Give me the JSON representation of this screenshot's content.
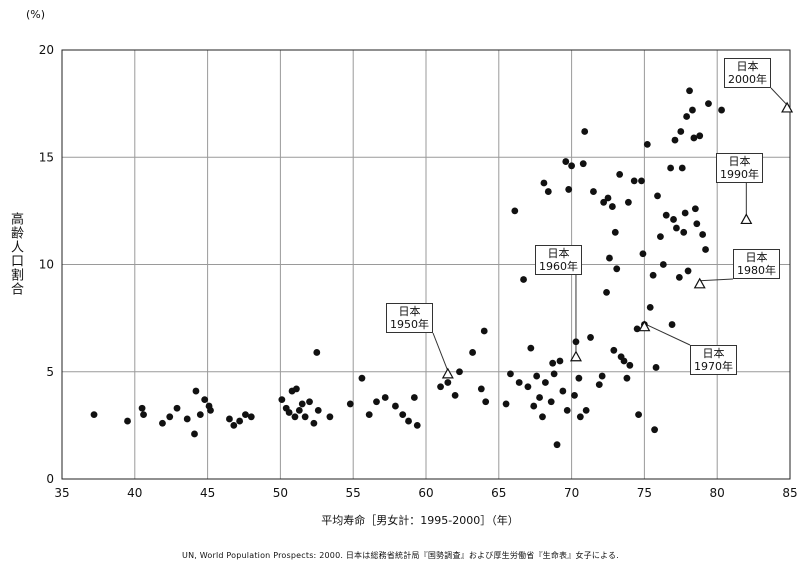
{
  "chart_data": {
    "type": "scatter",
    "title": "",
    "unit_label": "(%)",
    "ylabel": "高齢人口割合",
    "xlabel": "平均寿命［男女計：1995-2000］（年）",
    "xlim": [
      35,
      85
    ],
    "ylim": [
      0,
      20
    ],
    "x_ticks": [
      "35",
      "40",
      "45",
      "50",
      "55",
      "60",
      "65",
      "70",
      "75",
      "80",
      "85"
    ],
    "y_ticks": [
      "0",
      "5",
      "10",
      "15",
      "20"
    ],
    "grid": true,
    "points": [
      [
        37.2,
        3.0
      ],
      [
        39.5,
        2.7
      ],
      [
        40.5,
        3.3
      ],
      [
        40.6,
        3.0
      ],
      [
        41.9,
        2.6
      ],
      [
        42.4,
        2.9
      ],
      [
        42.9,
        3.3
      ],
      [
        43.6,
        2.8
      ],
      [
        44.1,
        2.1
      ],
      [
        44.2,
        4.1
      ],
      [
        44.5,
        3.0
      ],
      [
        44.8,
        3.7
      ],
      [
        45.1,
        3.4
      ],
      [
        45.2,
        3.2
      ],
      [
        46.5,
        2.8
      ],
      [
        46.8,
        2.5
      ],
      [
        47.2,
        2.7
      ],
      [
        47.6,
        3.0
      ],
      [
        48.0,
        2.9
      ],
      [
        50.1,
        3.7
      ],
      [
        50.4,
        3.3
      ],
      [
        50.6,
        3.1
      ],
      [
        50.8,
        4.1
      ],
      [
        51.0,
        2.9
      ],
      [
        51.1,
        4.2
      ],
      [
        51.3,
        3.2
      ],
      [
        51.5,
        3.5
      ],
      [
        51.7,
        2.9
      ],
      [
        52.0,
        3.6
      ],
      [
        52.3,
        2.6
      ],
      [
        52.5,
        5.9
      ],
      [
        52.6,
        3.2
      ],
      [
        53.4,
        2.9
      ],
      [
        54.8,
        3.5
      ],
      [
        55.6,
        4.7
      ],
      [
        56.1,
        3.0
      ],
      [
        56.6,
        3.6
      ],
      [
        57.2,
        3.8
      ],
      [
        57.9,
        3.4
      ],
      [
        58.4,
        3.0
      ],
      [
        58.8,
        2.7
      ],
      [
        59.2,
        3.8
      ],
      [
        59.4,
        2.5
      ],
      [
        61.0,
        4.3
      ],
      [
        61.5,
        4.5
      ],
      [
        62.0,
        3.9
      ],
      [
        62.3,
        5.0
      ],
      [
        63.2,
        5.9
      ],
      [
        63.8,
        4.2
      ],
      [
        64.0,
        6.9
      ],
      [
        64.1,
        3.6
      ],
      [
        65.5,
        3.5
      ],
      [
        65.8,
        4.9
      ],
      [
        66.1,
        12.5
      ],
      [
        66.4,
        4.5
      ],
      [
        66.7,
        9.3
      ],
      [
        67.0,
        4.3
      ],
      [
        67.2,
        6.1
      ],
      [
        67.4,
        3.4
      ],
      [
        67.6,
        4.8
      ],
      [
        67.8,
        3.8
      ],
      [
        68.0,
        2.9
      ],
      [
        68.1,
        13.8
      ],
      [
        68.2,
        4.5
      ],
      [
        68.4,
        13.4
      ],
      [
        68.6,
        3.6
      ],
      [
        68.7,
        5.4
      ],
      [
        68.8,
        4.9
      ],
      [
        69.0,
        1.6
      ],
      [
        69.2,
        5.5
      ],
      [
        69.4,
        4.1
      ],
      [
        69.6,
        14.8
      ],
      [
        69.7,
        3.2
      ],
      [
        69.8,
        13.5
      ],
      [
        70.0,
        14.6
      ],
      [
        70.2,
        3.9
      ],
      [
        70.3,
        6.4
      ],
      [
        70.5,
        4.7
      ],
      [
        70.6,
        2.9
      ],
      [
        70.8,
        14.7
      ],
      [
        70.9,
        16.2
      ],
      [
        71.0,
        3.2
      ],
      [
        71.3,
        6.6
      ],
      [
        71.5,
        13.4
      ],
      [
        71.9,
        4.4
      ],
      [
        72.1,
        4.8
      ],
      [
        72.2,
        12.9
      ],
      [
        72.4,
        8.7
      ],
      [
        72.5,
        13.1
      ],
      [
        72.6,
        10.3
      ],
      [
        72.8,
        12.7
      ],
      [
        72.9,
        6.0
      ],
      [
        73.0,
        11.5
      ],
      [
        73.1,
        9.8
      ],
      [
        73.3,
        14.2
      ],
      [
        73.4,
        5.7
      ],
      [
        73.6,
        5.5
      ],
      [
        73.8,
        4.7
      ],
      [
        73.9,
        12.9
      ],
      [
        74.0,
        5.3
      ],
      [
        74.3,
        13.9
      ],
      [
        74.5,
        7.0
      ],
      [
        74.6,
        3.0
      ],
      [
        74.8,
        13.9
      ],
      [
        74.9,
        10.5
      ],
      [
        75.0,
        7.2
      ],
      [
        75.2,
        15.6
      ],
      [
        75.4,
        8.0
      ],
      [
        75.6,
        9.5
      ],
      [
        75.7,
        2.3
      ],
      [
        75.8,
        5.2
      ],
      [
        75.9,
        13.2
      ],
      [
        76.1,
        11.3
      ],
      [
        76.3,
        10.0
      ],
      [
        76.5,
        12.3
      ],
      [
        76.8,
        14.5
      ],
      [
        76.9,
        7.2
      ],
      [
        77.0,
        12.1
      ],
      [
        77.1,
        15.8
      ],
      [
        77.2,
        11.7
      ],
      [
        77.4,
        9.4
      ],
      [
        77.5,
        16.2
      ],
      [
        77.6,
        14.5
      ],
      [
        77.7,
        11.5
      ],
      [
        77.8,
        12.4
      ],
      [
        77.9,
        16.9
      ],
      [
        78.0,
        9.7
      ],
      [
        78.1,
        18.1
      ],
      [
        78.3,
        17.2
      ],
      [
        78.4,
        15.9
      ],
      [
        78.5,
        12.6
      ],
      [
        78.6,
        11.9
      ],
      [
        78.8,
        16.0
      ],
      [
        79.0,
        11.4
      ],
      [
        79.2,
        10.7
      ],
      [
        79.4,
        17.5
      ],
      [
        80.3,
        17.2
      ]
    ],
    "japan_points": [
      {
        "year_label": "1950年",
        "country": "日本",
        "x": 61.5,
        "y": 4.9
      },
      {
        "year_label": "1960年",
        "country": "日本",
        "x": 70.3,
        "y": 5.7
      },
      {
        "year_label": "1970年",
        "country": "日本",
        "x": 75.0,
        "y": 7.1
      },
      {
        "year_label": "1980年",
        "country": "日本",
        "x": 78.8,
        "y": 9.1
      },
      {
        "year_label": "1990年",
        "country": "日本",
        "x": 82.0,
        "y": 12.1
      },
      {
        "year_label": "2000年",
        "country": "日本",
        "x": 84.8,
        "y": 17.3
      }
    ],
    "source_note": "UN, World Population Prospects: 2000. 日本は総務省統計局『国勢調査』および厚生労働省『生命表』女子による."
  }
}
